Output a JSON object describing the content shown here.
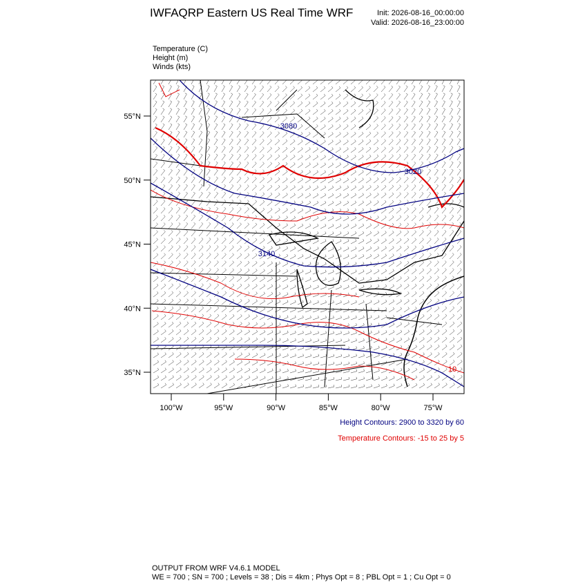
{
  "header": {
    "title": "IWFAQRP Eastern US Real Time WRF",
    "init": "Init: 2026-08-16_00:00:00",
    "valid": "Valid: 2026-08-16_23:00:00"
  },
  "fields": [
    "Temperature   (C)",
    "Height   (m)",
    "Winds   (kts)"
  ],
  "map": {
    "lat_ticks": [
      {
        "value": 55,
        "label": "55°N"
      },
      {
        "value": 50,
        "label": "50°N"
      },
      {
        "value": 45,
        "label": "45°N"
      },
      {
        "value": 40,
        "label": "40°N"
      },
      {
        "value": 35,
        "label": "35°N"
      }
    ],
    "lon_ticks": [
      {
        "value": -100,
        "label": "100°W"
      },
      {
        "value": -95,
        "label": "95°W"
      },
      {
        "value": -90,
        "label": "90°W"
      },
      {
        "value": -85,
        "label": "85°W"
      },
      {
        "value": -80,
        "label": "80°W"
      },
      {
        "value": -75,
        "label": "75°W"
      }
    ],
    "height_labels": [
      "3080",
      "3020",
      "3140"
    ],
    "temperature_labels": [
      "10"
    ]
  },
  "legend": {
    "height": "Height Contours: 2900 to 3320 by 60",
    "temperature": "Temperature Contours: -15 to 25 by 5"
  },
  "footer": {
    "line1": "OUTPUT FROM WRF V4.6.1 MODEL",
    "line2": "WE = 700 ; SN = 700 ; Levels = 38 ; Dis = 4km ; Phys Opt = 8 ; PBL Opt = 1 ; Cu Opt = 0"
  }
}
